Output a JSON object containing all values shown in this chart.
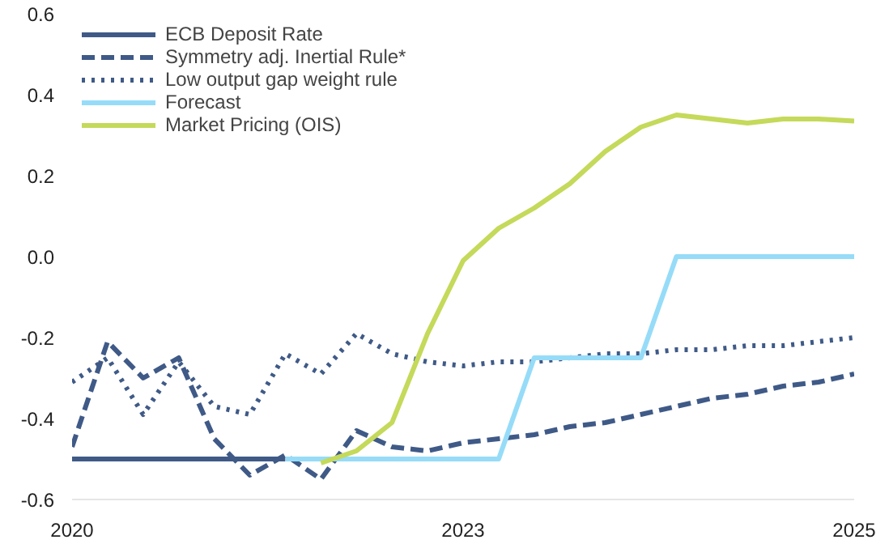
{
  "chart_data": {
    "type": "line",
    "categories": [
      "2020",
      null,
      null,
      null,
      null,
      null,
      null,
      null,
      null,
      null,
      null,
      "2023",
      null,
      null,
      null,
      null,
      null,
      null,
      null,
      null,
      null,
      null,
      "2025"
    ],
    "series": [
      {
        "name": "ECB Deposit Rate",
        "color": "#3f5a87",
        "line_style": "solid",
        "values": [
          -0.5,
          -0.5,
          -0.5,
          -0.5,
          -0.5,
          -0.5,
          -0.5,
          null,
          null,
          null,
          null,
          null,
          null,
          null,
          null,
          null,
          null,
          null,
          null,
          null,
          null,
          null,
          null
        ]
      },
      {
        "name": "Symmetry adj. Inertial Rule*",
        "color": "#3f5a87",
        "line_style": "dashed",
        "values": [
          -0.47,
          -0.21,
          -0.3,
          -0.25,
          -0.45,
          -0.54,
          -0.49,
          -0.55,
          -0.43,
          -0.47,
          -0.48,
          -0.46,
          -0.45,
          -0.44,
          -0.42,
          -0.41,
          -0.39,
          -0.37,
          -0.35,
          -0.34,
          -0.32,
          -0.31,
          -0.29
        ]
      },
      {
        "name": "Low output gap weight rule",
        "color": "#3f5a87",
        "line_style": "dotted",
        "values": [
          -0.31,
          -0.25,
          -0.39,
          -0.26,
          -0.37,
          -0.39,
          -0.24,
          -0.29,
          -0.19,
          -0.24,
          -0.26,
          -0.27,
          -0.26,
          -0.26,
          -0.25,
          -0.24,
          -0.24,
          -0.23,
          -0.23,
          -0.22,
          -0.22,
          -0.21,
          -0.2
        ]
      },
      {
        "name": "Forecast",
        "color": "#96dcf8",
        "line_style": "solid",
        "values": [
          null,
          null,
          null,
          null,
          null,
          null,
          -0.5,
          -0.5,
          -0.5,
          -0.5,
          -0.5,
          -0.5,
          -0.5,
          -0.25,
          -0.25,
          -0.25,
          -0.25,
          0,
          0,
          0,
          0,
          0,
          0
        ]
      },
      {
        "name": "Market Pricing (OIS)",
        "color": "#c5d95a",
        "line_style": "solid",
        "values": [
          null,
          null,
          null,
          null,
          null,
          null,
          null,
          -0.51,
          -0.48,
          -0.41,
          -0.19,
          -0.01,
          0.07,
          0.12,
          0.18,
          0.26,
          0.32,
          0.35,
          0.34,
          0.33,
          0.34,
          0.34,
          0.335
        ]
      }
    ],
    "ylim": [
      -0.6,
      0.6
    ],
    "yticks": [
      {
        "value": -0.6,
        "label": "-0.6"
      },
      {
        "value": -0.4,
        "label": "-0.4"
      },
      {
        "value": -0.2,
        "label": "-0.2"
      },
      {
        "value": 0,
        "label": "0.0"
      },
      {
        "value": 0.2,
        "label": "0.2"
      },
      {
        "value": 0.4,
        "label": "0.4"
      },
      {
        "value": 0.6,
        "label": "0.6"
      }
    ],
    "grid": false,
    "legend": "top left",
    "marker": "none"
  }
}
